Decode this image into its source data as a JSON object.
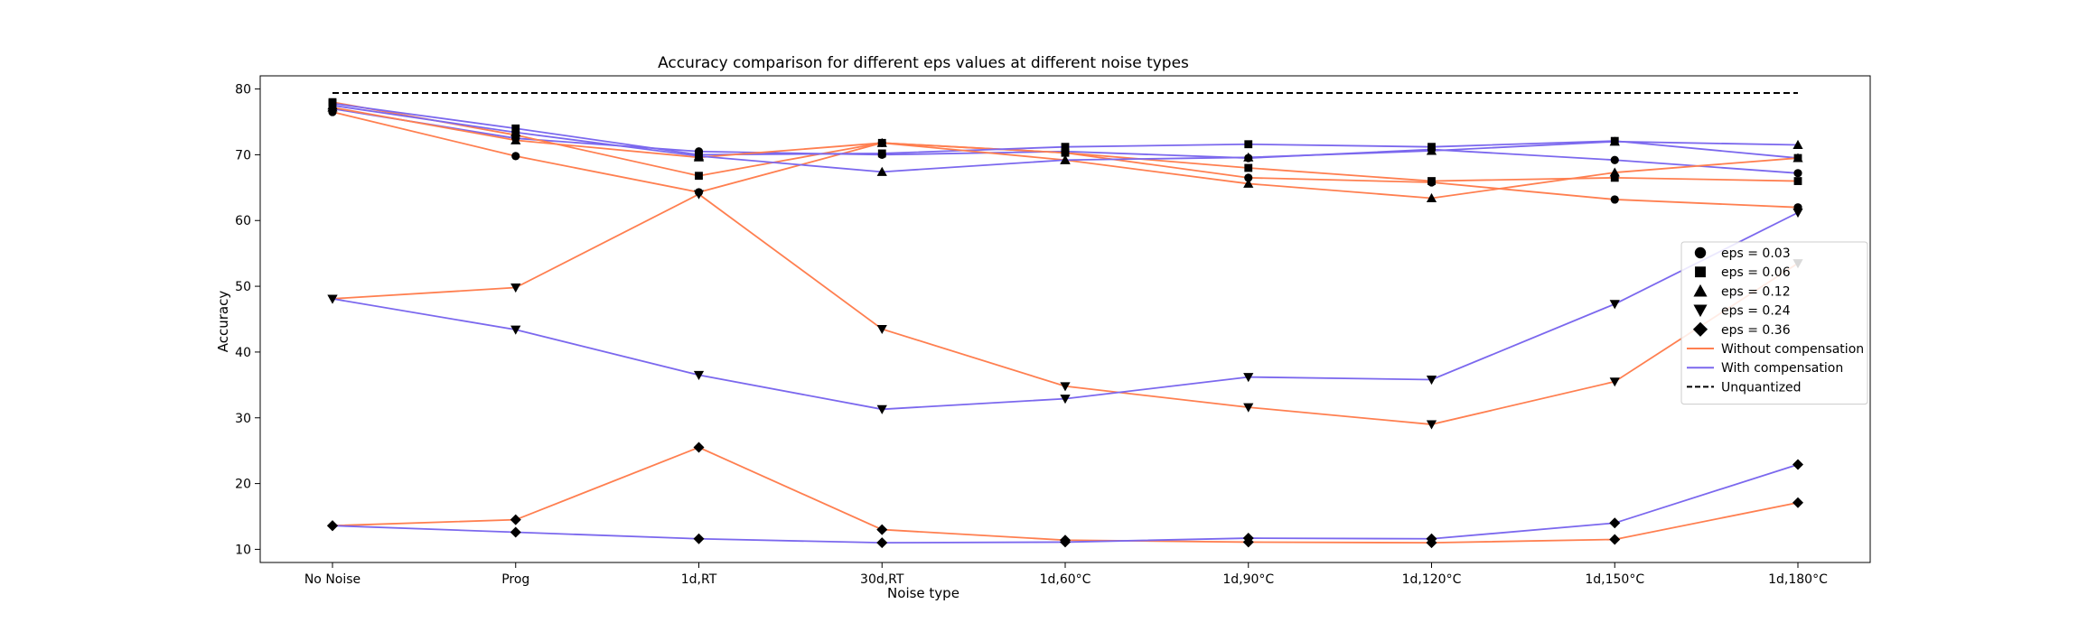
{
  "chart_data": {
    "type": "line",
    "title": "Accuracy comparison for different eps values at different noise types",
    "xlabel": "Noise type",
    "ylabel": "Accuracy",
    "categories": [
      "No Noise",
      "Prog",
      "1d,RT",
      "30d,RT",
      "1d,60°C",
      "1d,90°C",
      "1d,120°C",
      "1d,150°C",
      "1d,180°C"
    ],
    "ylim": [
      8,
      82
    ],
    "yticks": [
      10,
      20,
      30,
      40,
      50,
      60,
      70,
      80
    ],
    "grid": false,
    "legend_position": "center-right",
    "colors": {
      "without": "#FF7F50",
      "with": "#7B68EE",
      "unquantized": "#000000",
      "marker": "#000000"
    },
    "unquantized": {
      "name": "Unquantized",
      "value": 79.4
    },
    "series": [
      {
        "eps": "eps = 0.03",
        "marker": "circle",
        "compensation": "without",
        "values": [
          76.5,
          69.8,
          64.3,
          71.8,
          70.3,
          66.5,
          65.8,
          63.2,
          62.0
        ]
      },
      {
        "eps": "eps = 0.03",
        "marker": "circle",
        "compensation": "with",
        "values": [
          77.0,
          72.5,
          70.5,
          70.0,
          70.5,
          69.5,
          70.8,
          69.2,
          67.2
        ]
      },
      {
        "eps": "eps = 0.06",
        "marker": "square",
        "compensation": "without",
        "values": [
          78.0,
          73.0,
          66.8,
          71.8,
          70.3,
          68.0,
          66.0,
          66.5,
          66.0
        ]
      },
      {
        "eps": "eps = 0.06",
        "marker": "square",
        "compensation": "with",
        "values": [
          77.8,
          74.0,
          70.0,
          70.2,
          71.2,
          71.6,
          71.2,
          72.1,
          69.5
        ]
      },
      {
        "eps": "eps = 0.12",
        "marker": "triangle-up",
        "compensation": "without",
        "values": [
          77.2,
          72.2,
          69.6,
          71.8,
          69.2,
          65.6,
          63.4,
          67.3,
          69.5
        ]
      },
      {
        "eps": "eps = 0.12",
        "marker": "triangle-up",
        "compensation": "with",
        "values": [
          77.5,
          73.4,
          69.8,
          67.4,
          69.2,
          69.6,
          70.6,
          72.0,
          71.5
        ]
      },
      {
        "eps": "eps = 0.24",
        "marker": "triangle-down",
        "compensation": "without",
        "values": [
          48.1,
          49.8,
          64.0,
          43.5,
          34.8,
          31.6,
          29.0,
          35.5,
          53.5
        ]
      },
      {
        "eps": "eps = 0.24",
        "marker": "triangle-down",
        "compensation": "with",
        "values": [
          48.1,
          43.4,
          36.5,
          31.3,
          32.9,
          36.2,
          35.8,
          47.3,
          61.2
        ]
      },
      {
        "eps": "eps = 0.36",
        "marker": "diamond",
        "compensation": "without",
        "values": [
          13.6,
          14.5,
          25.5,
          13.0,
          11.4,
          11.1,
          11.0,
          11.5,
          17.1
        ]
      },
      {
        "eps": "eps = 0.36",
        "marker": "diamond",
        "compensation": "with",
        "values": [
          13.6,
          12.6,
          11.6,
          11.0,
          11.1,
          11.7,
          11.6,
          14.0,
          22.9
        ]
      }
    ],
    "legend": {
      "markers": [
        {
          "label": "eps = 0.03",
          "marker": "circle"
        },
        {
          "label": "eps = 0.06",
          "marker": "square"
        },
        {
          "label": "eps = 0.12",
          "marker": "triangle-up"
        },
        {
          "label": "eps = 0.24",
          "marker": "triangle-down"
        },
        {
          "label": "eps = 0.36",
          "marker": "diamond"
        }
      ],
      "lines": [
        {
          "label": "Without compensation",
          "style": "without"
        },
        {
          "label": "With compensation",
          "style": "with"
        },
        {
          "label": "Unquantized",
          "style": "unquantized"
        }
      ]
    }
  }
}
